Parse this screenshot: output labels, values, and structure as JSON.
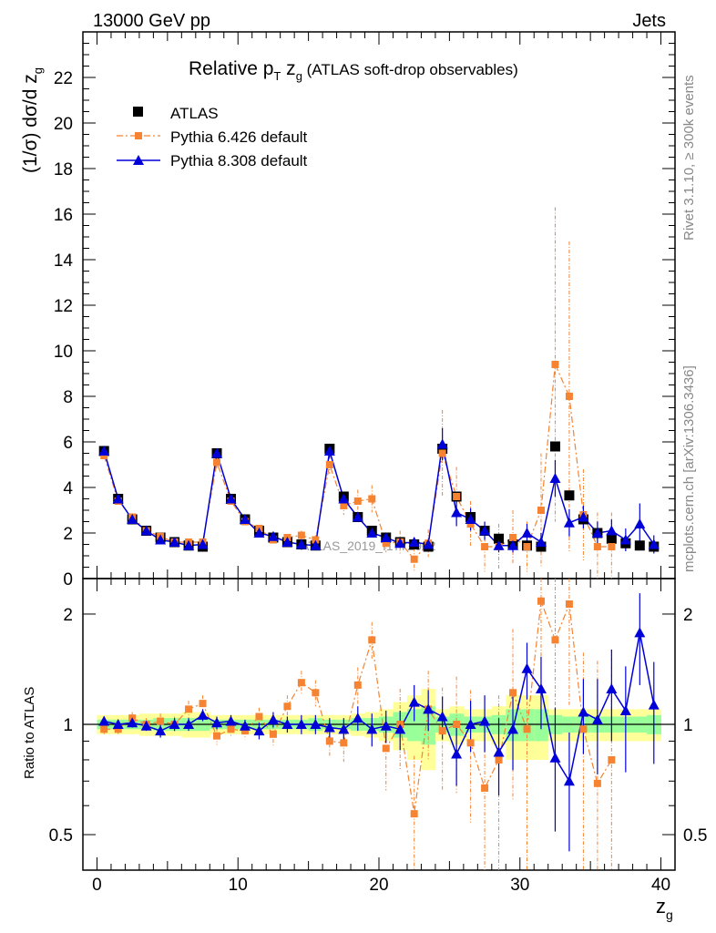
{
  "header": {
    "left": "13000 GeV pp",
    "right": "Jets"
  },
  "side_labels": {
    "rivet": "Rivet 3.1.10, ≥ 300k events",
    "mcplots": "mcplots.cern.ch [arXiv:1306.3436]"
  },
  "chart_data": {
    "type": "line",
    "title_main": "Relative p",
    "title_sub_T": "T",
    "title_mid": " z",
    "title_sub_g": "g",
    "title_suffix": " (ATLAS soft-drop observables)",
    "watermark": "ATLAS_2019_I1772062",
    "xlabel": "z",
    "xlabel_sub": "g",
    "ylabel": "(1/σ) dσ/d z",
    "ylabel_sub": "g",
    "ratio_ylabel": "Ratio to ATLAS",
    "xlim": [
      -1,
      41
    ],
    "ylim_main": [
      0,
      24
    ],
    "ylim_ratio_log": [
      0.4,
      2.5
    ],
    "xticks": [
      "0",
      "10",
      "20",
      "30",
      "40"
    ],
    "yticks_main": [
      "0",
      "2",
      "4",
      "6",
      "8",
      "10",
      "12",
      "14",
      "16",
      "18",
      "20",
      "22"
    ],
    "yticks_ratio": [
      "0.5",
      "1",
      "2"
    ],
    "x": [
      0.5,
      1.5,
      2.5,
      3.5,
      4.5,
      5.5,
      6.5,
      7.5,
      8.5,
      9.5,
      10.5,
      11.5,
      12.5,
      13.5,
      14.5,
      15.5,
      16.5,
      17.5,
      18.5,
      19.5,
      20.5,
      21.5,
      22.5,
      23.5,
      24.5,
      25.5,
      26.5,
      27.5,
      28.5,
      29.5,
      30.5,
      31.5,
      32.5,
      33.5,
      34.5,
      35.5,
      36.5,
      37.5,
      38.5,
      39.5
    ],
    "legend": [
      {
        "name": "ATLAS",
        "color": "#000000",
        "marker": "square"
      },
      {
        "name": "Pythia 6.426 default",
        "color": "#f58331",
        "marker": "square"
      },
      {
        "name": "Pythia 8.308 default",
        "color": "#0000d8",
        "marker": "triangle"
      }
    ],
    "series": [
      {
        "name": "ATLAS",
        "values": [
          5.6,
          3.5,
          2.6,
          2.1,
          1.8,
          1.6,
          1.45,
          1.4,
          5.5,
          3.5,
          2.6,
          2.1,
          1.8,
          1.6,
          1.5,
          1.45,
          5.7,
          3.6,
          2.7,
          2.1,
          1.8,
          1.6,
          1.5,
          1.4,
          5.7,
          3.6,
          2.7,
          2.1,
          1.75,
          1.5,
          1.45,
          1.4,
          5.8,
          3.65,
          2.6,
          2.0,
          1.75,
          1.55,
          1.45,
          1.4
        ]
      },
      {
        "name": "Pythia 6.426 default",
        "values": [
          5.4,
          3.4,
          2.7,
          2.1,
          1.85,
          1.6,
          1.6,
          1.6,
          5.1,
          3.4,
          2.5,
          2.2,
          1.7,
          1.8,
          1.9,
          1.7,
          5.0,
          3.2,
          3.4,
          3.5,
          1.55,
          1.6,
          0.85,
          1.55,
          5.5,
          3.6,
          2.4,
          1.4,
          1.4,
          1.8,
          1.4,
          3.0,
          9.4,
          8.0,
          2.8,
          1.4,
          1.4,
          null,
          null,
          null
        ],
        "errors": [
          0.15,
          0.12,
          0.1,
          0.1,
          0.1,
          0.1,
          0.12,
          0.12,
          0.25,
          0.15,
          0.12,
          0.12,
          0.12,
          0.15,
          0.2,
          0.2,
          0.4,
          0.4,
          0.5,
          0.6,
          0.4,
          0.5,
          0.5,
          0.6,
          1.9,
          1.3,
          1.0,
          1.1,
          1.0,
          1.2,
          1.1,
          2.5,
          6.9,
          6.8,
          2.0,
          1.5,
          1.5,
          null,
          null,
          null
        ]
      },
      {
        "name": "Pythia 8.308 default",
        "values": [
          5.6,
          3.5,
          2.6,
          2.1,
          1.7,
          1.6,
          1.45,
          1.5,
          5.5,
          3.5,
          2.6,
          2.0,
          1.85,
          1.6,
          1.5,
          1.45,
          5.6,
          3.5,
          2.7,
          2.0,
          1.8,
          1.55,
          1.6,
          1.5,
          5.9,
          2.9,
          2.6,
          2.1,
          1.45,
          1.45,
          2.0,
          1.6,
          4.4,
          2.45,
          2.7,
          2.0,
          2.1,
          1.7,
          2.4,
          1.5
        ],
        "errors": [
          0.12,
          0.1,
          0.08,
          0.08,
          0.08,
          0.08,
          0.08,
          0.08,
          0.2,
          0.12,
          0.1,
          0.1,
          0.1,
          0.1,
          0.1,
          0.1,
          0.3,
          0.3,
          0.2,
          0.2,
          0.2,
          0.2,
          0.2,
          0.2,
          0.7,
          0.6,
          0.5,
          0.4,
          0.3,
          0.3,
          0.4,
          0.4,
          0.8,
          0.6,
          0.5,
          0.5,
          0.5,
          0.5,
          0.9,
          0.4
        ]
      }
    ],
    "ratio_series": [
      {
        "name": "Pythia 6.426 default",
        "values": [
          0.97,
          0.97,
          1.04,
          1.0,
          1.02,
          1.0,
          1.1,
          1.14,
          0.93,
          0.97,
          0.96,
          1.05,
          0.94,
          1.12,
          1.3,
          1.22,
          0.9,
          0.89,
          1.28,
          1.7,
          0.86,
          1.0,
          0.57,
          1.1,
          0.96,
          1.0,
          0.89,
          0.67,
          0.8,
          1.22,
          0.97,
          2.17,
          1.7,
          2.13,
          0.97,
          0.69,
          0.8,
          null,
          null,
          null
        ],
        "errors": [
          0.03,
          0.03,
          0.04,
          0.04,
          0.05,
          0.05,
          0.06,
          0.06,
          0.05,
          0.05,
          0.05,
          0.06,
          0.07,
          0.08,
          0.1,
          0.1,
          0.08,
          0.1,
          0.15,
          0.2,
          0.2,
          0.25,
          0.25,
          0.3,
          0.3,
          0.35,
          0.35,
          0.4,
          0.4,
          0.6,
          0.6,
          1.0,
          1.0,
          1.0,
          0.6,
          0.8,
          0.8,
          null,
          null,
          null
        ]
      },
      {
        "name": "Pythia 8.308 default",
        "values": [
          1.02,
          1.0,
          1.01,
          0.99,
          0.96,
          1.0,
          1.0,
          1.06,
          1.01,
          1.02,
          0.99,
          0.96,
          1.03,
          1.0,
          1.0,
          1.0,
          0.98,
          0.97,
          1.04,
          0.97,
          0.99,
          0.97,
          1.15,
          1.1,
          1.05,
          0.83,
          1.0,
          1.02,
          0.84,
          0.97,
          1.42,
          1.25,
          0.81,
          0.7,
          1.08,
          1.03,
          1.25,
          1.09,
          1.78,
          1.13
        ],
        "errors": [
          0.03,
          0.03,
          0.03,
          0.03,
          0.04,
          0.04,
          0.04,
          0.04,
          0.04,
          0.04,
          0.04,
          0.05,
          0.05,
          0.05,
          0.06,
          0.06,
          0.06,
          0.07,
          0.08,
          0.1,
          0.1,
          0.12,
          0.13,
          0.14,
          0.14,
          0.15,
          0.16,
          0.18,
          0.2,
          0.22,
          0.25,
          0.28,
          0.3,
          0.25,
          0.25,
          0.3,
          0.35,
          0.35,
          0.5,
          0.35
        ]
      }
    ],
    "uncertainty_band": {
      "inner_halfwidth": [
        0.03,
        0.03,
        0.03,
        0.03,
        0.04,
        0.04,
        0.04,
        0.04,
        0.03,
        0.03,
        0.03,
        0.03,
        0.03,
        0.03,
        0.03,
        0.04,
        0.03,
        0.03,
        0.04,
        0.04,
        0.05,
        0.08,
        0.1,
        0.12,
        0.05,
        0.07,
        0.05,
        0.05,
        0.06,
        0.1,
        0.1,
        0.1,
        0.06,
        0.05,
        0.05,
        0.05,
        0.05,
        0.05,
        0.05,
        0.06
      ],
      "outer_halfwidth": [
        0.06,
        0.06,
        0.06,
        0.07,
        0.07,
        0.07,
        0.08,
        0.08,
        0.06,
        0.06,
        0.06,
        0.06,
        0.06,
        0.06,
        0.06,
        0.06,
        0.06,
        0.06,
        0.07,
        0.08,
        0.1,
        0.15,
        0.2,
        0.25,
        0.1,
        0.12,
        0.1,
        0.1,
        0.12,
        0.2,
        0.2,
        0.2,
        0.1,
        0.1,
        0.1,
        0.1,
        0.1,
        0.1,
        0.1,
        0.1
      ]
    }
  }
}
